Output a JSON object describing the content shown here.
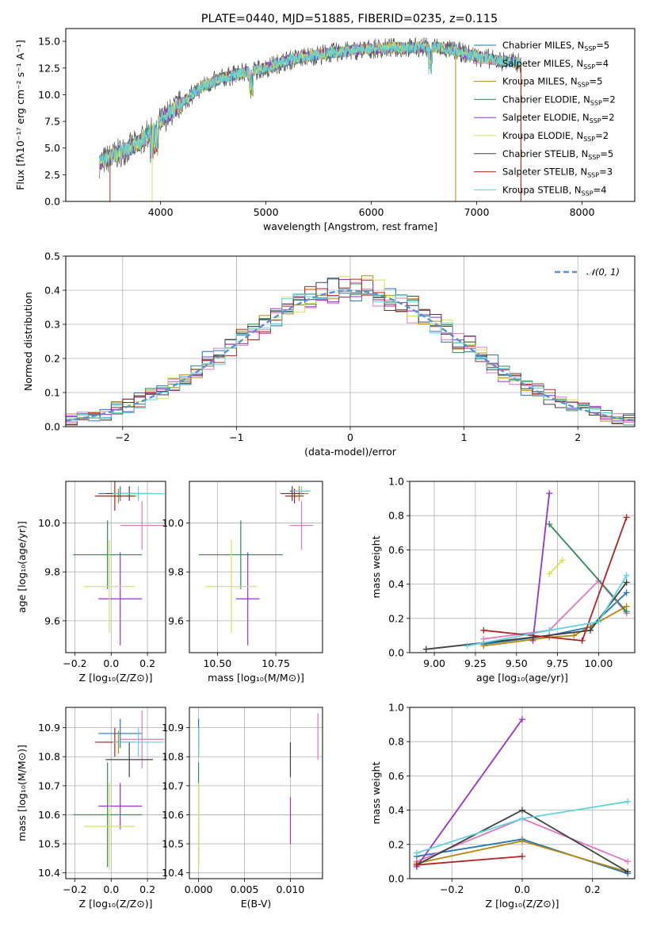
{
  "title": "PLATE=0440, MJD=51885, FIBERID=0235, z=0.115",
  "colors": {
    "chabrier_miles": "#1f77b4",
    "salpeter_miles": "#e377c2",
    "kroupa_miles": "#b8860b",
    "chabrier_elodie": "#2e8b57",
    "salpeter_elodie": "#9932cc",
    "kroupa_elodie": "#d4e157",
    "chabrier_stelib": "#404040",
    "salpeter_stelib": "#b22222",
    "kroupa_stelib": "#5ed3dc",
    "normal": "#5b8fd8",
    "orange": "#e67e22"
  },
  "chart_data": [
    {
      "id": "spectrum",
      "type": "line",
      "title": "PLATE=0440, MJD=51885, FIBERID=0235, z=0.115",
      "xlabel": "wavelength [Angstrom, rest frame]",
      "ylabel": "Flux [fλ10⁻¹⁷ erg cm⁻² s⁻¹ A⁻¹]",
      "xlim": [
        3100,
        8500
      ],
      "ylim": [
        0,
        16.2
      ],
      "xticks": [
        "4000",
        "5000",
        "6000",
        "7000",
        "8000"
      ],
      "yticks": [
        "0.0",
        "2.5",
        "5.0",
        "7.5",
        "10.0",
        "12.5",
        "15.0"
      ],
      "legend": "right",
      "series": [
        {
          "name": "Chabrier MILES, N_SSP=5"
        },
        {
          "name": "Salpeter MILES, N_SSP=4"
        },
        {
          "name": "Kroupa MILES, N_SSP=5"
        },
        {
          "name": "Chabrier ELODIE, N_SSP=2"
        },
        {
          "name": "Salpeter ELODIE, N_SSP=2"
        },
        {
          "name": "Kroupa ELODIE, N_SSP=2"
        },
        {
          "name": "Chabrier STELIB, N_SSP=5"
        },
        {
          "name": "Salpeter STELIB, N_SSP=3"
        },
        {
          "name": "Kroupa STELIB, N_SSP=4"
        }
      ],
      "continuum": {
        "x": [
          3400,
          3600,
          3800,
          4000,
          4200,
          4400,
          4600,
          4800,
          5000,
          5200,
          5400,
          5600,
          5800,
          6000,
          6200,
          6400,
          6600,
          6800,
          7000,
          7200,
          7400
        ],
        "y": [
          3.5,
          4.5,
          5.5,
          7.5,
          9.2,
          10.8,
          11.6,
          12.1,
          12.5,
          13.2,
          13.6,
          13.9,
          14.1,
          14.3,
          14.4,
          14.4,
          14.5,
          14.1,
          13.6,
          13.2,
          13.0
        ]
      }
    },
    {
      "id": "residuals",
      "type": "histogram",
      "xlabel": "(data-model)/error",
      "ylabel": "Normed distribution",
      "xlim": [
        -2.5,
        2.5
      ],
      "ylim": [
        0,
        0.5
      ],
      "xticks": [
        "−2",
        "−1",
        "0",
        "1",
        "2"
      ],
      "yticks": [
        "0.0",
        "0.1",
        "0.2",
        "0.3",
        "0.4",
        "0.5"
      ],
      "legend": "top-right",
      "normal_label": "𝒩(0, 1)",
      "bin_width": 0.1
    },
    {
      "id": "age_vs_Z",
      "type": "scatter",
      "xlabel": "Z [log₁₀(Z/Z⊙)]",
      "ylabel": "age  [log₁₀(age/yr)]",
      "xlim": [
        -0.25,
        0.3
      ],
      "ylim": [
        9.47,
        10.17
      ],
      "xticks": [
        "−0.2",
        "0.0",
        "0.2"
      ],
      "yticks": [
        "9.6",
        "9.8",
        "10.0"
      ],
      "points": [
        {
          "s": "chabrier_miles",
          "x": 0.05,
          "xerr": 0.12,
          "y": 10.12,
          "yerr": 0.03
        },
        {
          "s": "salpeter_miles",
          "x": 0.17,
          "xerr": 0.12,
          "y": 9.99,
          "yerr": 0.1
        },
        {
          "s": "kroupa_miles",
          "x": 0.04,
          "xerr": 0.1,
          "y": 10.11,
          "yerr": 0.03
        },
        {
          "s": "chabrier_elodie",
          "x": -0.02,
          "xerr": 0.19,
          "y": 9.87,
          "yerr": 0.14
        },
        {
          "s": "salpeter_elodie",
          "x": 0.05,
          "xerr": 0.12,
          "y": 9.69,
          "yerr": 0.19
        },
        {
          "s": "kroupa_elodie",
          "x": -0.01,
          "xerr": 0.14,
          "y": 9.74,
          "yerr": 0.19
        },
        {
          "s": "chabrier_stelib",
          "x": 0.1,
          "xerr": 0.13,
          "y": 10.12,
          "yerr": 0.03
        },
        {
          "s": "salpeter_stelib",
          "x": 0.02,
          "xerr": 0.11,
          "y": 10.11,
          "yerr": 0.06
        },
        {
          "s": "kroupa_stelib",
          "x": 0.15,
          "xerr": 0.14,
          "y": 10.12,
          "yerr": 0.03
        }
      ]
    },
    {
      "id": "age_vs_mass",
      "type": "scatter",
      "xlabel": "mass [log₁₀(M/M⊙)]",
      "ylabel": "",
      "xlim": [
        10.38,
        10.95
      ],
      "ylim": [
        9.47,
        10.17
      ],
      "xticks": [
        "10.50",
        "10.75"
      ],
      "yticks": [
        "9.6",
        "9.8",
        "10.0"
      ],
      "points": [
        {
          "s": "chabrier_miles",
          "x": 10.85,
          "xerr": 0.04,
          "y": 10.13,
          "yerr": 0.02
        },
        {
          "s": "salpeter_miles",
          "x": 10.86,
          "xerr": 0.05,
          "y": 9.99,
          "yerr": 0.1
        },
        {
          "s": "kroupa_miles",
          "x": 10.85,
          "xerr": 0.04,
          "y": 10.12,
          "yerr": 0.03
        },
        {
          "s": "chabrier_elodie",
          "x": 10.6,
          "xerr": 0.18,
          "y": 9.87,
          "yerr": 0.14
        },
        {
          "s": "salpeter_elodie",
          "x": 10.63,
          "xerr": 0.05,
          "y": 9.69,
          "yerr": 0.19
        },
        {
          "s": "kroupa_elodie",
          "x": 10.56,
          "xerr": 0.11,
          "y": 9.74,
          "yerr": 0.19
        },
        {
          "s": "chabrier_stelib",
          "x": 10.82,
          "xerr": 0.05,
          "y": 10.12,
          "yerr": 0.03
        },
        {
          "s": "salpeter_stelib",
          "x": 10.83,
          "xerr": 0.04,
          "y": 10.11,
          "yerr": 0.03
        },
        {
          "s": "kroupa_stelib",
          "x": 10.86,
          "xerr": 0.04,
          "y": 10.13,
          "yerr": 0.02
        }
      ]
    },
    {
      "id": "weight_vs_age",
      "type": "line",
      "xlabel": "age  [log₁₀(age/yr)]",
      "ylabel": "mass weight",
      "xlim": [
        8.85,
        10.22
      ],
      "ylim": [
        0,
        1.0
      ],
      "xticks": [
        "9.00",
        "9.25",
        "9.50",
        "9.75",
        "10.00"
      ],
      "yticks": [
        "0.0",
        "0.2",
        "0.4",
        "0.6",
        "0.8",
        "1.0"
      ],
      "series": [
        {
          "s": "chabrier_miles",
          "x": [
            9.3,
            9.7,
            9.95,
            10.17
          ],
          "y": [
            0.05,
            0.1,
            0.15,
            0.35
          ]
        },
        {
          "s": "salpeter_miles",
          "x": [
            9.3,
            9.7,
            10.0,
            10.17
          ],
          "y": [
            0.08,
            0.13,
            0.42,
            0.23
          ]
        },
        {
          "s": "kroupa_miles",
          "x": [
            9.3,
            9.7,
            9.85,
            10.17
          ],
          "y": [
            0.04,
            0.09,
            0.1,
            0.27
          ]
        },
        {
          "s": "chabrier_elodie",
          "x": [
            9.7,
            10.17
          ],
          "y": [
            0.75,
            0.24
          ]
        },
        {
          "s": "salpeter_elodie",
          "x": [
            9.6,
            9.7
          ],
          "y": [
            0.07,
            0.93
          ]
        },
        {
          "s": "kroupa_elodie",
          "x": [
            9.7,
            9.78
          ],
          "y": [
            0.46,
            0.54
          ]
        },
        {
          "s": "chabrier_stelib",
          "x": [
            8.95,
            9.6,
            9.95,
            10.17
          ],
          "y": [
            0.02,
            0.09,
            0.13,
            0.41
          ]
        },
        {
          "s": "salpeter_stelib",
          "x": [
            9.3,
            9.9,
            10.17
          ],
          "y": [
            0.13,
            0.07,
            0.79
          ]
        },
        {
          "s": "kroupa_stelib",
          "x": [
            9.2,
            9.7,
            10.0,
            10.17
          ],
          "y": [
            0.04,
            0.13,
            0.18,
            0.45
          ]
        }
      ]
    },
    {
      "id": "mass_vs_Z",
      "type": "scatter",
      "xlabel": "Z [log₁₀(Z/Z⊙)]",
      "ylabel": "mass [log₁₀(M/M⊙)]",
      "xlim": [
        -0.25,
        0.3
      ],
      "ylim": [
        10.38,
        10.97
      ],
      "xticks": [
        "−0.2",
        "0.0",
        "0.2"
      ],
      "yticks": [
        "10.4",
        "10.5",
        "10.6",
        "10.7",
        "10.8",
        "10.9"
      ],
      "points": [
        {
          "s": "chabrier_miles",
          "x": 0.05,
          "xerr": 0.12,
          "y": 10.88,
          "yerr": 0.05
        },
        {
          "s": "salpeter_miles",
          "x": 0.17,
          "xerr": 0.12,
          "y": 10.86,
          "yerr": 0.1
        },
        {
          "s": "kroupa_miles",
          "x": 0.04,
          "xerr": 0.1,
          "y": 10.85,
          "yerr": 0.04
        },
        {
          "s": "chabrier_elodie",
          "x": -0.02,
          "xerr": 0.19,
          "y": 10.6,
          "yerr": 0.18
        },
        {
          "s": "salpeter_elodie",
          "x": 0.05,
          "xerr": 0.12,
          "y": 10.63,
          "yerr": 0.08
        },
        {
          "s": "kroupa_elodie",
          "x": -0.01,
          "xerr": 0.14,
          "y": 10.56,
          "yerr": 0.15
        },
        {
          "s": "chabrier_stelib",
          "x": 0.1,
          "xerr": 0.13,
          "y": 10.79,
          "yerr": 0.06
        },
        {
          "s": "salpeter_stelib",
          "x": 0.02,
          "xerr": 0.11,
          "y": 10.85,
          "yerr": 0.05
        },
        {
          "s": "kroupa_stelib",
          "x": 0.15,
          "xerr": 0.14,
          "y": 10.85,
          "yerr": 0.05
        }
      ]
    },
    {
      "id": "mass_vs_ebv",
      "type": "scatter",
      "xlabel": "E(B-V)",
      "ylabel": "",
      "xlim": [
        -0.001,
        0.0135
      ],
      "ylim": [
        10.38,
        10.97
      ],
      "xticks": [
        "0.000",
        "0.005",
        "0.010"
      ],
      "yticks": [
        "10.4",
        "10.5",
        "10.6",
        "10.7",
        "10.8",
        "10.9"
      ],
      "points": [
        {
          "s": "chabrier_miles",
          "x": 0.0,
          "xerr": 0,
          "y": 10.88,
          "yerr": 0.05
        },
        {
          "s": "salpeter_miles",
          "x": 0.013,
          "xerr": 0,
          "y": 10.87,
          "yerr": 0.08
        },
        {
          "s": "kroupa_miles",
          "x": 0.0,
          "xerr": 0,
          "y": 10.85,
          "yerr": 0.04
        },
        {
          "s": "chabrier_elodie",
          "x": 0.0,
          "xerr": 0,
          "y": 10.6,
          "yerr": 0.18
        },
        {
          "s": "salpeter_elodie",
          "x": 0.01,
          "xerr": 0,
          "y": 10.58,
          "yerr": 0.08
        },
        {
          "s": "kroupa_elodie",
          "x": 0.0,
          "xerr": 0,
          "y": 10.56,
          "yerr": 0.15
        },
        {
          "s": "chabrier_stelib",
          "x": 0.01,
          "xerr": 0,
          "y": 10.79,
          "yerr": 0.06
        },
        {
          "s": "salpeter_stelib",
          "x": 0.0,
          "xerr": 0,
          "y": 10.85,
          "yerr": 0.05
        },
        {
          "s": "kroupa_stelib",
          "x": 0.0,
          "xerr": 0,
          "y": 10.85,
          "yerr": 0.05
        }
      ]
    },
    {
      "id": "weight_vs_Z",
      "type": "line",
      "xlabel": "Z [log₁₀(Z/Z⊙)]",
      "ylabel": "mass weight",
      "xlim": [
        -0.32,
        0.32
      ],
      "ylim": [
        0,
        1.0
      ],
      "xticks": [
        "−0.2",
        "0.0",
        "0.2"
      ],
      "yticks": [
        "0.0",
        "0.2",
        "0.4",
        "0.6",
        "0.8",
        "1.0"
      ],
      "series": [
        {
          "s": "chabrier_miles",
          "x": [
            -0.3,
            0.0,
            0.3
          ],
          "y": [
            0.13,
            0.23,
            0.03
          ]
        },
        {
          "s": "salpeter_miles",
          "x": [
            -0.3,
            0.0,
            0.3
          ],
          "y": [
            0.1,
            0.35,
            0.1
          ]
        },
        {
          "s": "kroupa_miles",
          "x": [
            -0.3,
            0.0,
            0.3
          ],
          "y": [
            0.09,
            0.22,
            0.04
          ]
        },
        {
          "s": "salpeter_elodie",
          "x": [
            -0.3,
            0.0
          ],
          "y": [
            0.07,
            0.93
          ]
        },
        {
          "s": "chabrier_stelib",
          "x": [
            -0.3,
            0.0,
            0.3
          ],
          "y": [
            0.08,
            0.4,
            0.04
          ]
        },
        {
          "s": "salpeter_stelib",
          "x": [
            -0.3,
            0.0
          ],
          "y": [
            0.08,
            0.13
          ]
        },
        {
          "s": "kroupa_stelib",
          "x": [
            -0.3,
            0.0,
            0.3
          ],
          "y": [
            0.15,
            0.35,
            0.45
          ]
        }
      ]
    }
  ]
}
